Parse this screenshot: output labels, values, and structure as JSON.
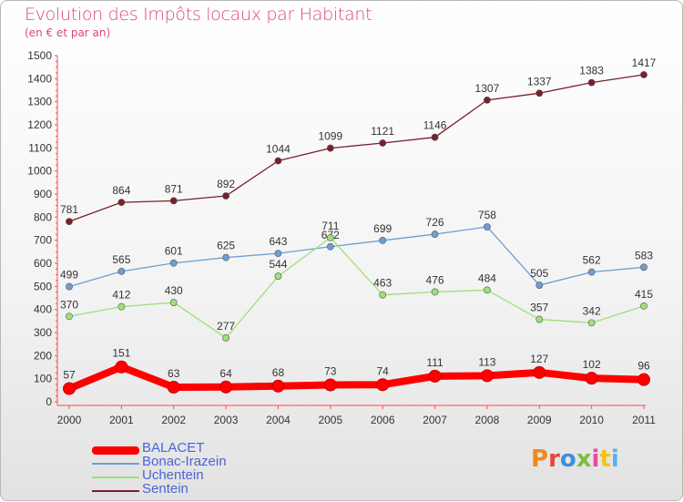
{
  "title": "Evolution des Impôts locaux par Habitant",
  "subtitle": "(en € et par an)",
  "logo": {
    "text": "Proxiti",
    "colors": [
      "#f08a1c",
      "#e8453c",
      "#3f8fd8",
      "#7cbf3c",
      "#e94aa0",
      "#f4c21c",
      "#5ab0e8"
    ]
  },
  "chart_data": {
    "type": "line",
    "x": [
      "2000",
      "2001",
      "2002",
      "2003",
      "2004",
      "2005",
      "2006",
      "2007",
      "2008",
      "2009",
      "2010",
      "2011"
    ],
    "ylim": [
      0,
      1500
    ],
    "yticks": [
      0,
      100,
      200,
      300,
      400,
      500,
      600,
      700,
      800,
      900,
      1000,
      1100,
      1200,
      1300,
      1400,
      1500
    ],
    "grid": false,
    "legend_position": "bottom-left",
    "series": [
      {
        "name": "BALACET",
        "color": "#ff0000",
        "values": [
          57,
          151,
          63,
          64,
          68,
          73,
          74,
          111,
          113,
          127,
          102,
          96
        ]
      },
      {
        "name": "Bonac-Irazein",
        "color": "#6d9ed4",
        "values": [
          499,
          565,
          601,
          625,
          643,
          672,
          699,
          726,
          758,
          505,
          562,
          583
        ]
      },
      {
        "name": "Uchentein",
        "color": "#9de07a",
        "values": [
          370,
          412,
          430,
          277,
          544,
          711,
          463,
          476,
          484,
          357,
          342,
          415
        ]
      },
      {
        "name": "Sentein",
        "color": "#7a1f2b",
        "values": [
          781,
          864,
          871,
          892,
          1044,
          1099,
          1121,
          1146,
          1307,
          1337,
          1383,
          1417
        ]
      }
    ],
    "value_labels": {
      "BALACET": [
        "57",
        "151",
        "63",
        "64",
        "68",
        "73",
        "74",
        "111",
        "113",
        "127",
        "102",
        "96"
      ],
      "Bonac-Irazein": [
        "499",
        "565",
        "601",
        "625",
        "643",
        "672",
        "699",
        "726",
        "758",
        "505",
        "562",
        "583"
      ],
      "Uchentein": [
        "370",
        "412",
        "430",
        "277",
        "544",
        "711",
        "463",
        "476",
        "484",
        "357",
        "342",
        "415"
      ],
      "Sentein": [
        "781",
        "864",
        "871",
        "892",
        "1044",
        "1099",
        "1121",
        "1146",
        "1307",
        "1337",
        "1383",
        "1417"
      ]
    }
  }
}
